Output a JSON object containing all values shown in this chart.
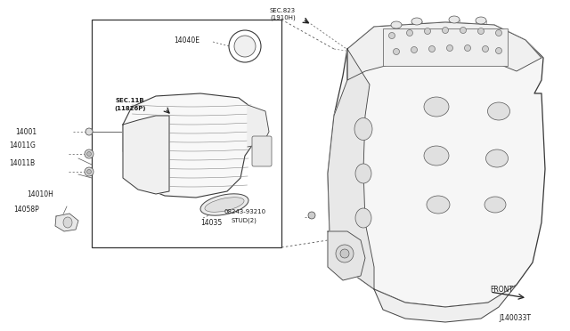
{
  "bg_color": "#ffffff",
  "text_color": "#1a1a1a",
  "fig_width": 6.4,
  "fig_height": 3.72,
  "dpi": 100,
  "diagram_id": "J140033T",
  "front_label": "FRONT",
  "sec_top_line1": "SEC.823",
  "sec_top_line2": "(1910H)",
  "sec_inner_line1": "SEC.11B",
  "sec_inner_line2": "(11826P)",
  "label_14040E": "14040E",
  "label_14001": "14001",
  "label_14011G": "14011G",
  "label_14011B": "14011B",
  "label_14010H": "14010H",
  "label_14058P": "14058P",
  "label_14035": "14035",
  "label_stud1": "08243-93210",
  "label_stud2": "STUD(2)",
  "lc": "#2a2a2a",
  "lw_main": 0.7,
  "lw_thin": 0.4,
  "fs_label": 5.5,
  "fs_small": 5.0
}
